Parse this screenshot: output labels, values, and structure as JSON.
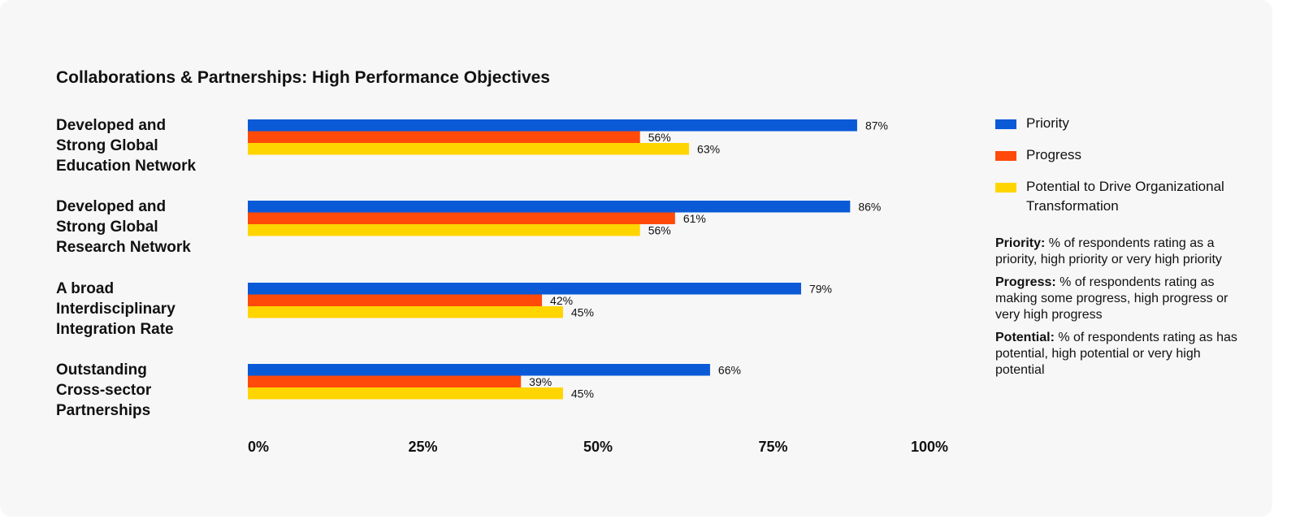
{
  "colors": {
    "priority": "#0a5ad7",
    "progress": "#ff4a0a",
    "potential": "#ffd500"
  },
  "chart_data": {
    "type": "bar",
    "orientation": "horizontal",
    "title": "Collaborations & Partnerships: High Performance Objectives",
    "categories": [
      "Developed and\nStrong Global\nEducation Network",
      "Developed and\nStrong Global\nResearch Network",
      "A broad\nInterdisciplinary\nIntegration Rate",
      "Outstanding\nCross-sector\nPartnerships"
    ],
    "series": [
      {
        "name": "Priority",
        "values": [
          87,
          86,
          79,
          66
        ],
        "labels": [
          "87%",
          "86%",
          "79%",
          "66%"
        ]
      },
      {
        "name": "Progress",
        "values": [
          56,
          61,
          42,
          39
        ],
        "labels": [
          "56%",
          "61%",
          "42%",
          "39%"
        ]
      },
      {
        "name": "Potential to Drive Organizational Transformation",
        "values": [
          63,
          56,
          45,
          45
        ],
        "labels": [
          "63%",
          "56%",
          "45%",
          "45%"
        ]
      }
    ],
    "xlim": [
      0,
      100
    ],
    "x_ticks": [
      "0%",
      "25%",
      "50%",
      "75%",
      "100%"
    ],
    "xlabel": "",
    "ylabel": "",
    "grid": false,
    "legend_position": "right"
  },
  "notes": [
    {
      "term": "Priority:",
      "text": " % of respondents rating as a priority, high priority or very high priority"
    },
    {
      "term": "Progress:",
      "text": " % of respondents rating as making some progress, high progress or very high progress"
    },
    {
      "term": "Potential:",
      "text": " % of respondents rating as has potential, high potential or very high potential"
    }
  ]
}
